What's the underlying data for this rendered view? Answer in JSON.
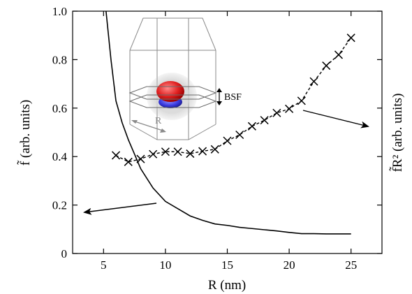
{
  "chart_data": [
    {
      "type": "line",
      "xlabel": "R (nm)",
      "ylabel": "f̃ (arb. units)",
      "y2label": "f̃R² (arb. units)",
      "xlim": [
        2.5,
        27.5
      ],
      "ylim": [
        0,
        1.0
      ],
      "x_ticks": [
        5,
        10,
        15,
        20,
        25
      ],
      "y_ticks": [
        0,
        0.2,
        0.4,
        0.6,
        0.8,
        1.0
      ],
      "x_tick_labels": [
        "5",
        "10",
        "15",
        "20",
        "25"
      ],
      "y_tick_labels": [
        "0",
        "0.2",
        "0.4",
        "0.6",
        "0.8",
        "1.0"
      ],
      "grid": false,
      "series": [
        {
          "style": "solid",
          "axis": "left",
          "x": [
            5.2,
            5.6,
            6.0,
            6.5,
            7.0,
            7.5,
            8.0,
            9.0,
            10.0,
            11.0,
            12.0,
            13.0,
            14.0,
            15.0,
            16.0,
            17.0,
            18.0,
            19.0,
            20.0,
            21.0,
            22.0,
            23.0,
            24.0,
            25.0
          ],
          "y": [
            1.0,
            0.8,
            0.63,
            0.54,
            0.47,
            0.41,
            0.35,
            0.27,
            0.215,
            0.185,
            0.155,
            0.137,
            0.122,
            0.116,
            0.108,
            0.103,
            0.098,
            0.093,
            0.087,
            0.082,
            0.082,
            0.081,
            0.081,
            0.081
          ]
        },
        {
          "style": "markers+dashed",
          "marker": "x",
          "axis": "right",
          "x": [
            6,
            7,
            8,
            9,
            10,
            11,
            12,
            13,
            14,
            15,
            16,
            17,
            18,
            19,
            20,
            21,
            22,
            23,
            24,
            25
          ],
          "y": [
            0.405,
            0.378,
            0.39,
            0.41,
            0.42,
            0.42,
            0.412,
            0.422,
            0.43,
            0.465,
            0.49,
            0.525,
            0.55,
            0.58,
            0.597,
            0.63,
            0.71,
            0.775,
            0.82,
            0.89
          ]
        }
      ]
    },
    {
      "type": "inset",
      "labels": [
        "BSF",
        "R"
      ]
    }
  ]
}
